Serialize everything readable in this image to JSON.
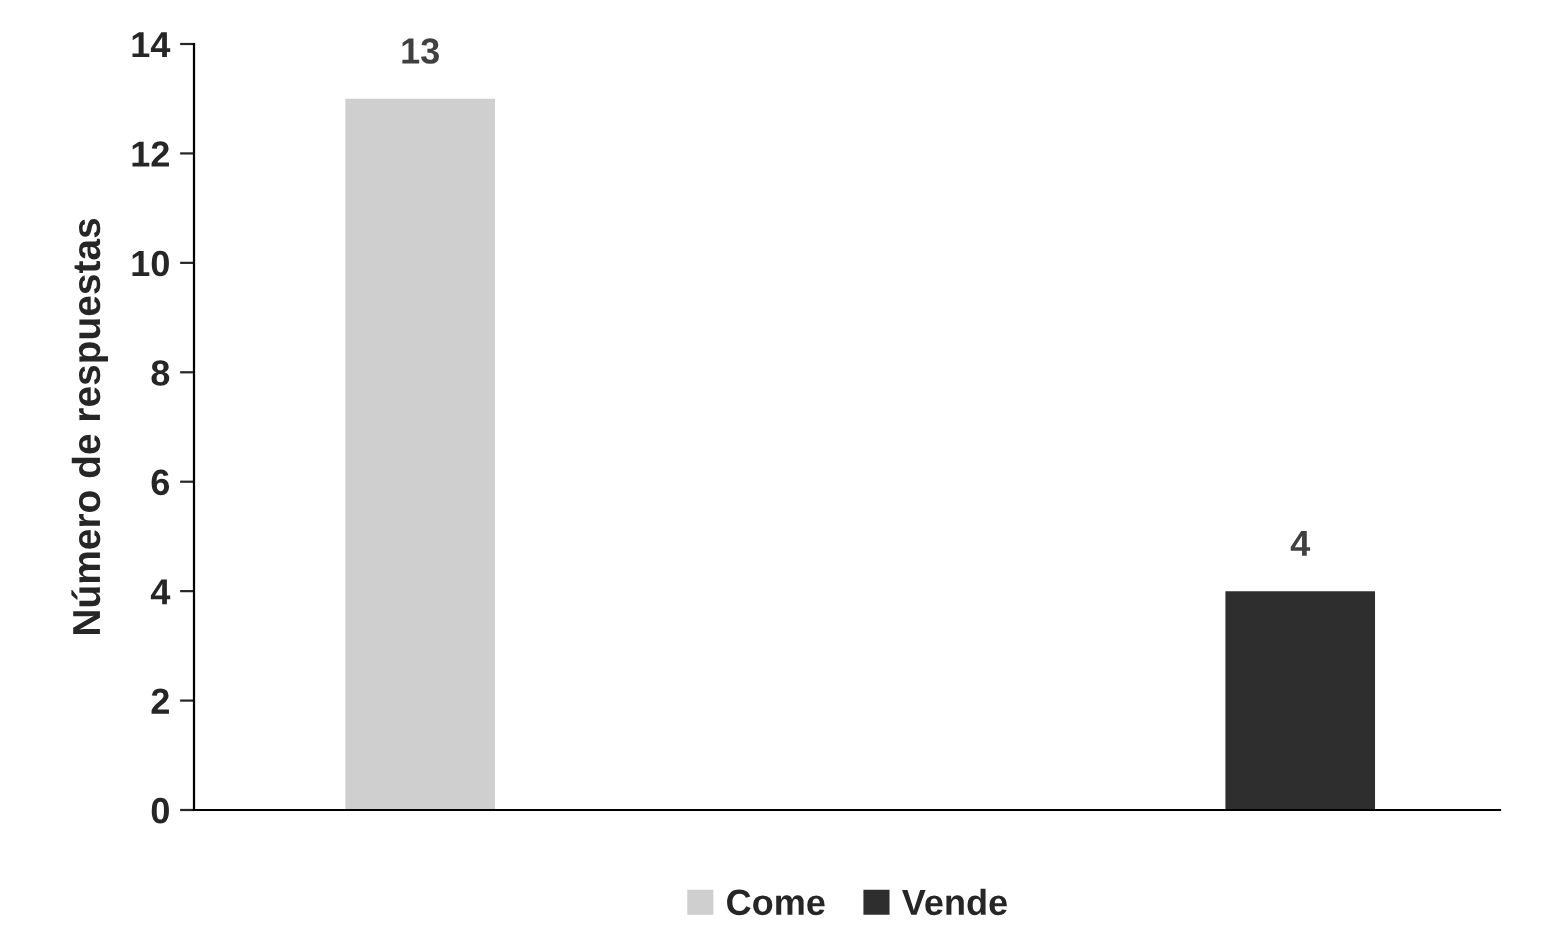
{
  "chart_data": {
    "type": "bar",
    "ylabel": "Número de respuestas",
    "categories": [
      null,
      null
    ],
    "series": [
      {
        "name": "Come",
        "color": "#cfcfcf",
        "values": [
          13,
          null
        ]
      },
      {
        "name": "Vende",
        "color": "#2e2e2e",
        "values": [
          null,
          4
        ]
      }
    ],
    "ylim": [
      0,
      14
    ],
    "yticks": [
      0,
      2,
      4,
      6,
      8,
      10,
      12,
      14
    ],
    "data_labels": true,
    "legend": "bottom",
    "grid": false
  }
}
